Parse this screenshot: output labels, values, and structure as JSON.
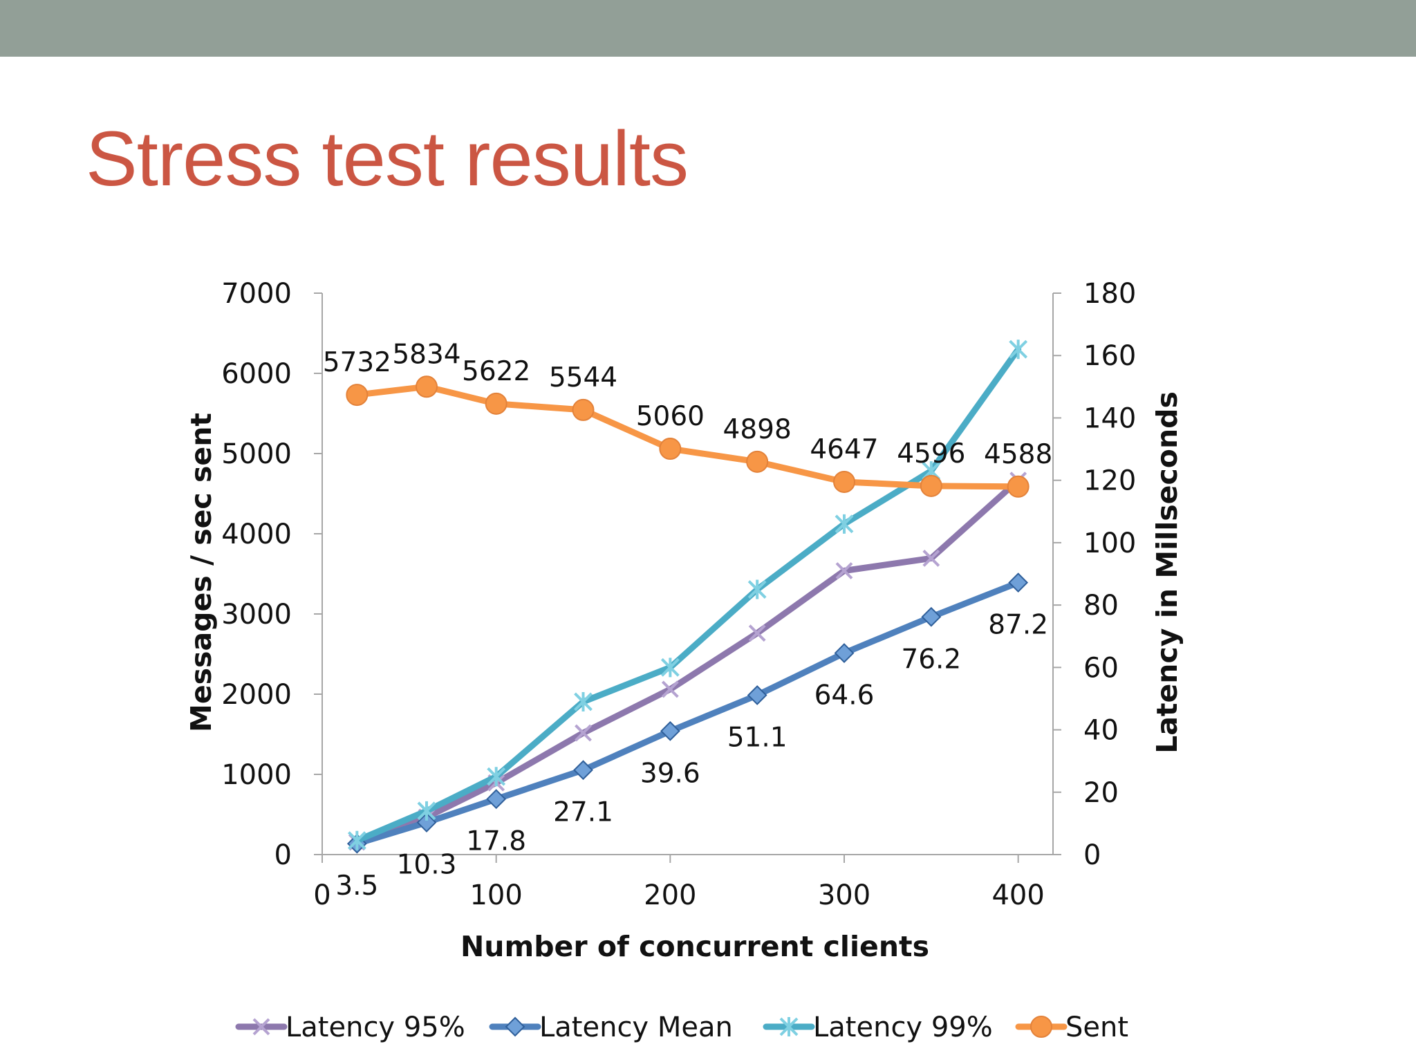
{
  "slide": {
    "title": "Stress test results"
  },
  "colors": {
    "top_bar": "#929f97",
    "title": "#cb5643"
  },
  "chart_data": {
    "type": "line",
    "title": "",
    "xlabel": "Number of concurrent clients",
    "ylabel_left": "Messages / sec sent",
    "ylabel_right": "Latency in Millseconds",
    "xlim": [
      0,
      420
    ],
    "ylim_left": [
      0,
      7000
    ],
    "ylim_right": [
      0,
      180
    ],
    "x_ticks": [
      0,
      100,
      200,
      300,
      400
    ],
    "y_ticks_left": [
      0,
      1000,
      2000,
      3000,
      4000,
      5000,
      6000,
      7000
    ],
    "y_ticks_right": [
      0,
      20,
      40,
      60,
      80,
      100,
      120,
      140,
      160,
      180
    ],
    "x": [
      20,
      60,
      100,
      150,
      200,
      250,
      300,
      350,
      400
    ],
    "grid": false,
    "legend_position": "bottom",
    "series": [
      {
        "name": "Latency 95%",
        "axis": "right",
        "color": "#8d78ad",
        "marker": "x",
        "values": [
          4,
          12,
          23,
          39,
          53,
          71,
          91,
          95,
          120
        ],
        "labels": []
      },
      {
        "name": "Latency Mean",
        "axis": "right",
        "color": "#4f81bd",
        "marker": "diamond",
        "values": [
          3.5,
          10.3,
          17.8,
          27.1,
          39.6,
          51.1,
          64.6,
          76.2,
          87.2
        ],
        "labels": [
          "3.5",
          "10.3",
          "17.8",
          "27.1",
          "39.6",
          "51.1",
          "64.6",
          "76.2",
          "87.2"
        ]
      },
      {
        "name": "Latency 99%",
        "axis": "right",
        "color": "#4bacc6",
        "marker": "star",
        "values": [
          4.5,
          14,
          25,
          49,
          60,
          85,
          106,
          123,
          162
        ],
        "labels": []
      },
      {
        "name": "Sent",
        "axis": "left",
        "color": "#f79646",
        "marker": "circle",
        "values": [
          5732,
          5834,
          5622,
          5544,
          5060,
          4898,
          4647,
          4596,
          4588
        ],
        "labels": [
          "5732",
          "5834",
          "5622",
          "5544",
          "5060",
          "4898",
          "4647",
          "4596",
          "4588"
        ]
      }
    ]
  }
}
